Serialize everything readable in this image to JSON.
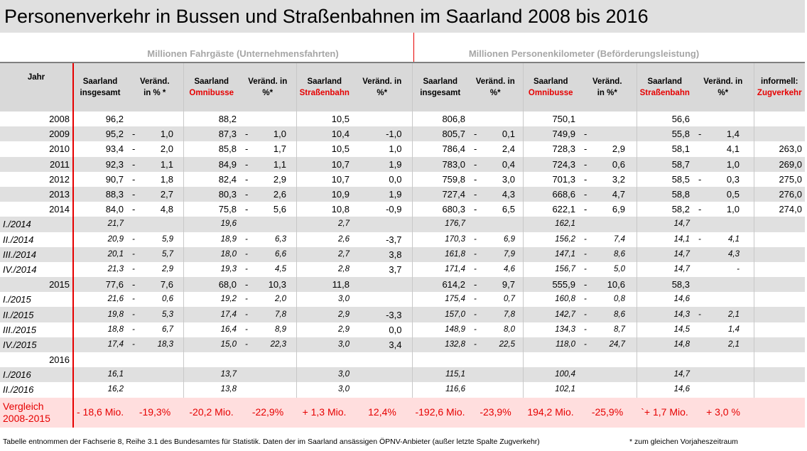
{
  "title": "Personenverkehr in Bussen und Straßenbahnen im Saarland 2008 bis 2016",
  "group_headers": {
    "left": "Millionen Fahrgäste (Unternehmensfahrten)",
    "right": "Millionen Personenkilometer (Beförderungsleistung)"
  },
  "columns": {
    "year": "Jahr",
    "c1a": "Saarland",
    "c1b": "insgesamt",
    "c2a": "Veränd.",
    "c2b": "in % *",
    "c3a": "Saarland",
    "c3b": "Omnibusse",
    "c4a": "Veränd. in",
    "c4b": "%*",
    "c5a": "Saarland",
    "c5b": "Straßenbahn",
    "c6a": "Veränd. in",
    "c6b": "%*",
    "c7a": "Saarland",
    "c7b": "insgesamt",
    "c8a": "Veränd. in",
    "c8b": "%*",
    "c9a": "Saarland",
    "c9b": "Omnibusse",
    "c10a": "Veränd.",
    "c10b": "in %*",
    "c11a": "Saarland",
    "c11b": "Straßenbahn",
    "c12a": "Veränd. in",
    "c12b": "%*",
    "c13a": "informell:",
    "c13b": "Zugverkehr"
  },
  "rows": [
    {
      "y": "2008",
      "l": "",
      "v": [
        "96,2",
        "",
        "",
        "88,2",
        "",
        "",
        "10,5",
        "",
        "806,8",
        "",
        "",
        "750,1",
        "",
        "",
        "56,6",
        "",
        "",
        ""
      ]
    },
    {
      "y": "2009",
      "l": "",
      "v": [
        "95,2",
        "-",
        "1,0",
        "87,3",
        "-",
        "1,0",
        "10,4",
        "-1,0",
        "805,7",
        "-",
        "0,1",
        "749,9",
        "-",
        "",
        "55,8",
        "-",
        "1,4",
        ""
      ]
    },
    {
      "y": "2010",
      "l": "",
      "v": [
        "93,4",
        "-",
        "2,0",
        "85,8",
        "-",
        "1,7",
        "10,5",
        "1,0",
        "786,4",
        "-",
        "2,4",
        "728,3",
        "-",
        "2,9",
        "58,1",
        "",
        "4,1",
        "263,0"
      ]
    },
    {
      "y": "2011",
      "l": "",
      "v": [
        "92,3",
        "-",
        "1,1",
        "84,9",
        "-",
        "1,1",
        "10,7",
        "1,9",
        "783,0",
        "-",
        "0,4",
        "724,3",
        "-",
        "0,6",
        "58,7",
        "",
        "1,0",
        "269,0"
      ]
    },
    {
      "y": "2012",
      "l": "",
      "v": [
        "90,7",
        "-",
        "1,8",
        "82,4",
        "-",
        "2,9",
        "10,7",
        "0,0",
        "759,8",
        "-",
        "3,0",
        "701,3",
        "-",
        "3,2",
        "58,5",
        "-",
        "0,3",
        "275,0"
      ]
    },
    {
      "y": "2013",
      "l": "",
      "v": [
        "88,3",
        "-",
        "2,7",
        "80,3",
        "-",
        "2,6",
        "10,9",
        "1,9",
        "727,4",
        "-",
        "4,3",
        "668,6",
        "-",
        "4,7",
        "58,8",
        "",
        "0,5",
        "276,0"
      ]
    },
    {
      "y": "2014",
      "l": "",
      "v": [
        "84,0",
        "-",
        "4,8",
        "75,8",
        "-",
        "5,6",
        "10,8",
        "-0,9",
        "680,3",
        "-",
        "6,5",
        "622,1",
        "-",
        "6,9",
        "58,2",
        "-",
        "1,0",
        "274,0"
      ]
    },
    {
      "y": "",
      "l": "I./2014",
      "v": [
        "21,7",
        "",
        "",
        "19,6",
        "",
        "",
        "2,7",
        "",
        "176,7",
        "",
        "",
        "162,1",
        "",
        "",
        "14,7",
        "",
        "",
        ""
      ]
    },
    {
      "y": "",
      "l": "II./2014",
      "v": [
        "20,9",
        "-",
        "5,9",
        "18,9",
        "-",
        "6,3",
        "2,6",
        "-3,7",
        "170,3",
        "-",
        "6,9",
        "156,2",
        "-",
        "7,4",
        "14,1",
        "-",
        "4,1",
        ""
      ]
    },
    {
      "y": "",
      "l": "III./2014",
      "v": [
        "20,1",
        "-",
        "5,7",
        "18,0",
        "-",
        "6,6",
        "2,7",
        "3,8",
        "161,8",
        "-",
        "7,9",
        "147,1",
        "-",
        "8,6",
        "14,7",
        "",
        "4,3",
        ""
      ]
    },
    {
      "y": "",
      "l": "IV./2014",
      "v": [
        "21,3",
        "-",
        "2,9",
        "19,3",
        "-",
        "4,5",
        "2,8",
        "3,7",
        "171,4",
        "-",
        "4,6",
        "156,7",
        "-",
        "5,0",
        "14,7",
        "",
        "-",
        ""
      ]
    },
    {
      "y": "2015",
      "l": "",
      "v": [
        "77,6",
        "-",
        "7,6",
        "68,0",
        "-",
        "10,3",
        "11,8",
        "",
        "614,2",
        "-",
        "9,7",
        "555,9",
        "-",
        "10,6",
        "58,3",
        "",
        "",
        ""
      ]
    },
    {
      "y": "",
      "l": "I./2015",
      "v": [
        "21,6",
        "-",
        "0,6",
        "19,2",
        "-",
        "2,0",
        "3,0",
        "",
        "175,4",
        "-",
        "0,7",
        "160,8",
        "-",
        "0,8",
        "14,6",
        "",
        "",
        ""
      ]
    },
    {
      "y": "",
      "l": "II./2015",
      "v": [
        "19,8",
        "-",
        "5,3",
        "17,4",
        "-",
        "7,8",
        "2,9",
        "-3,3",
        "157,0",
        "-",
        "7,8",
        "142,7",
        "-",
        "8,6",
        "14,3",
        "-",
        "2,1",
        ""
      ]
    },
    {
      "y": "",
      "l": "III./2015",
      "v": [
        "18,8",
        "-",
        "6,7",
        "16,4",
        "-",
        "8,9",
        "2,9",
        "0,0",
        "148,9",
        "-",
        "8,0",
        "134,3",
        "-",
        "8,7",
        "14,5",
        "",
        "1,4",
        ""
      ]
    },
    {
      "y": "",
      "l": "IV./2015",
      "v": [
        "17,4",
        "-",
        "18,3",
        "15,0",
        "-",
        "22,3",
        "3,0",
        "3,4",
        "132,8",
        "-",
        "22,5",
        "118,0",
        "-",
        "24,7",
        "14,8",
        "",
        "2,1",
        ""
      ]
    },
    {
      "y": "2016",
      "l": "",
      "v": [
        "",
        "",
        "",
        "",
        "",
        "",
        "",
        "",
        "",
        "",
        "",
        "",
        "",
        "",
        "",
        "",
        "",
        ""
      ]
    },
    {
      "y": "",
      "l": "I./2016",
      "v": [
        "16,1",
        "",
        "",
        "13,7",
        "",
        "",
        "3,0",
        "",
        "115,1",
        "",
        "",
        "100,4",
        "",
        "",
        "14,7",
        "",
        "",
        ""
      ]
    },
    {
      "y": "",
      "l": "II./2016",
      "v": [
        "16,2",
        "",
        "",
        "13,8",
        "",
        "",
        "3,0",
        "",
        "116,6",
        "",
        "",
        "102,1",
        "",
        "",
        "14,6",
        "",
        "",
        ""
      ]
    }
  ],
  "comparison": {
    "label1": "Vergleich",
    "label2": "2008-2015",
    "values": [
      "- 18,6 Mio.",
      "-19,3%",
      "-20,2 Mio.",
      "-22,9%",
      "+ 1,3 Mio.",
      "12,4%",
      "-192,6 Mio.",
      "-23,9%",
      "194,2 Mio.",
      "-25,9%",
      "`+ 1,7 Mio.",
      "+ 3,0 %",
      ""
    ]
  },
  "footer": "Tabelle entnommen der Fachserie 8, Reihe 3.1 des Bundesamtes für Statistik. Daten der im Saarland ansässigen ÖPNV-Anbieter (außer letzte Spalte Zugverkehr)",
  "footnote": "* zum gleichen Vorjaheszeitraum",
  "colors": {
    "accent_red": "#e60000",
    "header_gray": "#d9d9d9",
    "row_shade": "#e0e0e0",
    "compare_bg": "#ffdede"
  }
}
